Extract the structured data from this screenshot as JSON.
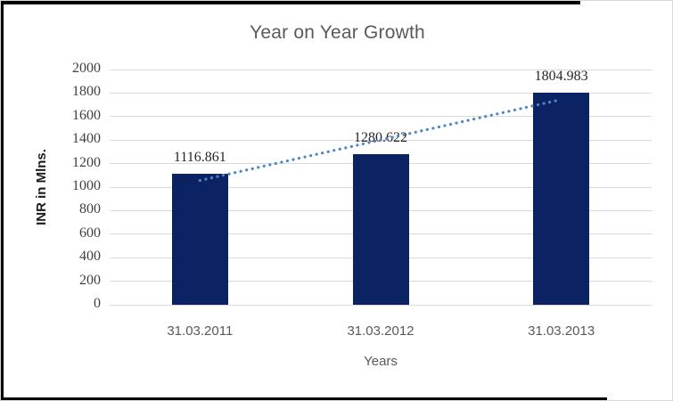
{
  "chart_data": {
    "type": "bar",
    "title": "Year on Year Growth",
    "categories": [
      "31.03.2011",
      "31.03.2012",
      "31.03.2013"
    ],
    "values": [
      1116.861,
      1280.622,
      1804.983
    ],
    "data_labels": [
      "1116.861",
      "1280.622",
      "1804.983"
    ],
    "xlabel": "Years",
    "ylabel": "INR in Mlns.",
    "ylim": [
      0,
      2000
    ],
    "ytick_step": 200,
    "ytick_labels": [
      "0",
      "200",
      "400",
      "600",
      "800",
      "1000",
      "1200",
      "1400",
      "1600",
      "1800",
      "2000"
    ],
    "grid": true,
    "legend": "none",
    "trendline": {
      "type": "linear",
      "style": "dotted"
    },
    "colors": {
      "bar": "#0b2363",
      "trendline": "#4e86c6",
      "gridline": "#d9d9d9",
      "title_text": "#595959",
      "ytick_text": "#404040",
      "xtick_text": "#595959",
      "axis_title_text": "#595959",
      "ylabel_text": "#1a1a1a",
      "data_label_text": "#262626",
      "frame_accent": "#000000",
      "frame_border": "#d9d9d9"
    }
  }
}
